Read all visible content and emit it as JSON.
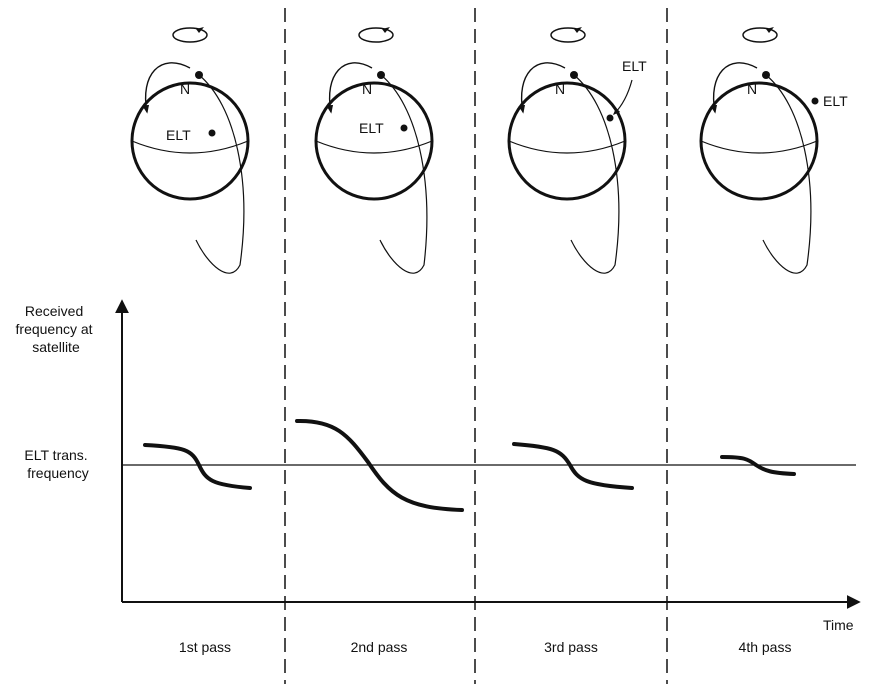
{
  "diagram": {
    "y_axis_label": [
      "Received",
      "frequency at",
      "satellite"
    ],
    "x_axis_label": "Time",
    "reference_label": [
      "ELT trans.",
      "frequency"
    ],
    "pole_label": "N",
    "transmitter_label": "ELT",
    "passes": [
      {
        "label": "1st pass",
        "elt_position": "left-center",
        "doppler_shift": "medium"
      },
      {
        "label": "2nd pass",
        "elt_position": "center",
        "doppler_shift": "large"
      },
      {
        "label": "3rd pass",
        "elt_position": "right-of-orbit",
        "doppler_shift": "medium"
      },
      {
        "label": "4th pass",
        "elt_position": "near-orbit",
        "doppler_shift": "small"
      }
    ]
  }
}
